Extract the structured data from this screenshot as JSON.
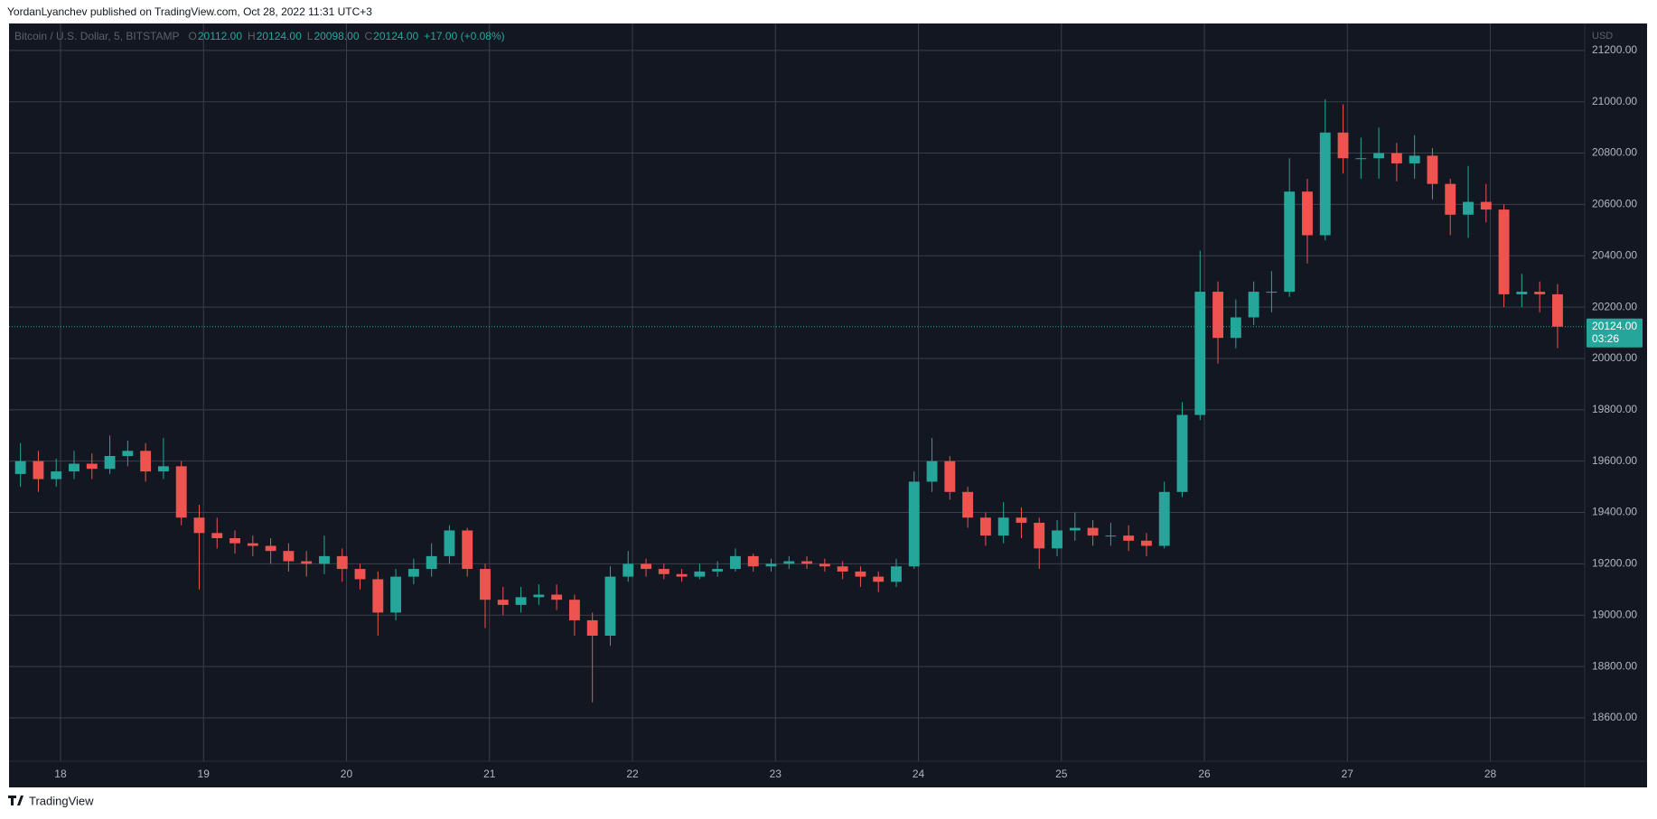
{
  "header": {
    "publisher": "YordanLyanchev published on TradingView.com, Oct 28, 2022 11:31 UTC+3"
  },
  "footer": {
    "brand": "TradingView"
  },
  "chart_data": {
    "type": "candlestick",
    "symbol": "Bitcoin / U.S. Dollar, 5, BITSTAMP",
    "legend": [
      {
        "key": "O",
        "text": "20112.00"
      },
      {
        "key": "H",
        "text": "20124.00"
      },
      {
        "key": "L",
        "text": "20098.00"
      },
      {
        "key": "C",
        "text": "20124.00"
      },
      {
        "key": "",
        "text": "+17.00 (+0.08%)"
      }
    ],
    "currency": "USD",
    "last_price": {
      "value": 20124,
      "label": "20124.00"
    },
    "countdown": "03:26",
    "up_color": "#26a69a",
    "down_color": "#ef5350",
    "xlim": [
      17.64,
      28.66
    ],
    "xticks": [
      18,
      19,
      20,
      21,
      22,
      23,
      24,
      25,
      26,
      27,
      28
    ],
    "ylim": [
      18431,
      21305
    ],
    "yticks": [
      {
        "value": 18600,
        "label": "18600.00"
      },
      {
        "value": 18800,
        "label": "18800.00"
      },
      {
        "value": 19000,
        "label": "19000.00"
      },
      {
        "value": 19200,
        "label": "19200.00"
      },
      {
        "value": 19400,
        "label": "19400.00"
      },
      {
        "value": 19600,
        "label": "19600.00"
      },
      {
        "value": 19800,
        "label": "19800.00"
      },
      {
        "value": 20000,
        "label": "20000.00"
      },
      {
        "value": 20200,
        "label": "20200.00"
      },
      {
        "value": 20400,
        "label": "20400.00"
      },
      {
        "value": 20600,
        "label": "20600.00"
      },
      {
        "value": 20800,
        "label": "20800.00"
      },
      {
        "value": 21000,
        "label": "21000.00"
      },
      {
        "value": 21200,
        "label": "21200.00"
      }
    ],
    "grid": true,
    "x": [
      17.72,
      17.845,
      17.97,
      18.095,
      18.22,
      18.345,
      18.47,
      18.595,
      18.72,
      18.845,
      18.97,
      19.095,
      19.22,
      19.345,
      19.47,
      19.595,
      19.72,
      19.845,
      19.97,
      20.095,
      20.22,
      20.345,
      20.47,
      20.595,
      20.72,
      20.845,
      20.97,
      21.095,
      21.22,
      21.345,
      21.47,
      21.595,
      21.72,
      21.845,
      21.97,
      22.095,
      22.22,
      22.345,
      22.47,
      22.595,
      22.72,
      22.845,
      22.97,
      23.095,
      23.22,
      23.345,
      23.47,
      23.595,
      23.72,
      23.845,
      23.97,
      24.095,
      24.22,
      24.345,
      24.47,
      24.595,
      24.72,
      24.845,
      24.97,
      25.095,
      25.22,
      25.345,
      25.47,
      25.595,
      25.72,
      25.845,
      25.97,
      26.095,
      26.22,
      26.345,
      26.47,
      26.595,
      26.72,
      26.845,
      26.97,
      27.095,
      27.22,
      27.345,
      27.47,
      27.595,
      27.72,
      27.845,
      27.97,
      28.095,
      28.22,
      28.345,
      28.47
    ],
    "open": [
      19550,
      19600,
      19530,
      19560,
      19590,
      19570,
      19620,
      19640,
      19560,
      19580,
      19380,
      19320,
      19300,
      19280,
      19270,
      19250,
      19210,
      19200,
      19230,
      19180,
      19140,
      19010,
      19150,
      19180,
      19230,
      19330,
      19180,
      19060,
      19040,
      19070,
      19080,
      19060,
      18980,
      18920,
      19150,
      19200,
      19180,
      19160,
      19150,
      19170,
      19180,
      19230,
      19190,
      19200,
      19210,
      19200,
      19190,
      19170,
      19150,
      19130,
      19190,
      19520,
      19600,
      19480,
      19380,
      19310,
      19380,
      19360,
      19260,
      19330,
      19340,
      19310,
      19310,
      19290,
      19270,
      19480,
      19780,
      20260,
      20080,
      20160,
      20260,
      20260,
      20650,
      20480,
      20880,
      20780,
      20780,
      20800,
      20760,
      20790,
      20680,
      20560,
      20610,
      20580,
      20250,
      20260,
      20250
    ],
    "high": [
      19670,
      19640,
      19610,
      19640,
      19630,
      19700,
      19680,
      19670,
      19690,
      19600,
      19430,
      19380,
      19330,
      19310,
      19300,
      19280,
      19250,
      19310,
      19260,
      19200,
      19170,
      19180,
      19220,
      19280,
      19350,
      19340,
      19200,
      19110,
      19110,
      19120,
      19120,
      19080,
      19010,
      19190,
      19250,
      19220,
      19200,
      19180,
      19200,
      19210,
      19260,
      19240,
      19220,
      19230,
      19230,
      19220,
      19210,
      19190,
      19170,
      19220,
      19560,
      19690,
      19620,
      19500,
      19400,
      19440,
      19420,
      19380,
      19370,
      19400,
      19370,
      19360,
      19350,
      19320,
      19520,
      19830,
      20420,
      20300,
      20230,
      20300,
      20340,
      20780,
      20700,
      21010,
      20990,
      20860,
      20900,
      20840,
      20870,
      20820,
      20700,
      20750,
      20680,
      20600,
      20330,
      20300,
      20290
    ],
    "low": [
      19500,
      19480,
      19500,
      19530,
      19530,
      19550,
      19580,
      19520,
      19530,
      19350,
      19100,
      19260,
      19240,
      19230,
      19200,
      19170,
      19150,
      19160,
      19130,
      19100,
      18920,
      18980,
      19120,
      19150,
      19200,
      19150,
      18950,
      19000,
      19010,
      19040,
      19020,
      18920,
      18660,
      18880,
      19130,
      19150,
      19140,
      19130,
      19140,
      19150,
      19170,
      19170,
      19170,
      19180,
      19180,
      19170,
      19140,
      19110,
      19090,
      19110,
      19180,
      19480,
      19450,
      19340,
      19270,
      19280,
      19300,
      19180,
      19230,
      19290,
      19270,
      19270,
      19250,
      19230,
      19260,
      19460,
      19760,
      19980,
      20040,
      20130,
      20180,
      20240,
      20370,
      20460,
      20720,
      20700,
      20700,
      20690,
      20700,
      20620,
      20480,
      20470,
      20530,
      20200,
      20200,
      20180,
      20040
    ],
    "close": [
      19600,
      19530,
      19560,
      19590,
      19570,
      19620,
      19640,
      19560,
      19580,
      19380,
      19320,
      19300,
      19280,
      19270,
      19250,
      19210,
      19200,
      19230,
      19180,
      19140,
      19010,
      19150,
      19180,
      19230,
      19330,
      19180,
      19060,
      19040,
      19070,
      19080,
      19060,
      18980,
      18920,
      19150,
      19200,
      19180,
      19160,
      19150,
      19170,
      19180,
      19230,
      19190,
      19200,
      19210,
      19200,
      19190,
      19170,
      19150,
      19130,
      19190,
      19520,
      19600,
      19480,
      19380,
      19310,
      19380,
      19360,
      19260,
      19330,
      19340,
      19310,
      19310,
      19290,
      19270,
      19480,
      19780,
      20260,
      20080,
      20160,
      20260,
      20260,
      20650,
      20480,
      20880,
      20780,
      20780,
      20800,
      20760,
      20790,
      20680,
      20560,
      20610,
      20580,
      20250,
      20260,
      20250,
      20124
    ]
  }
}
